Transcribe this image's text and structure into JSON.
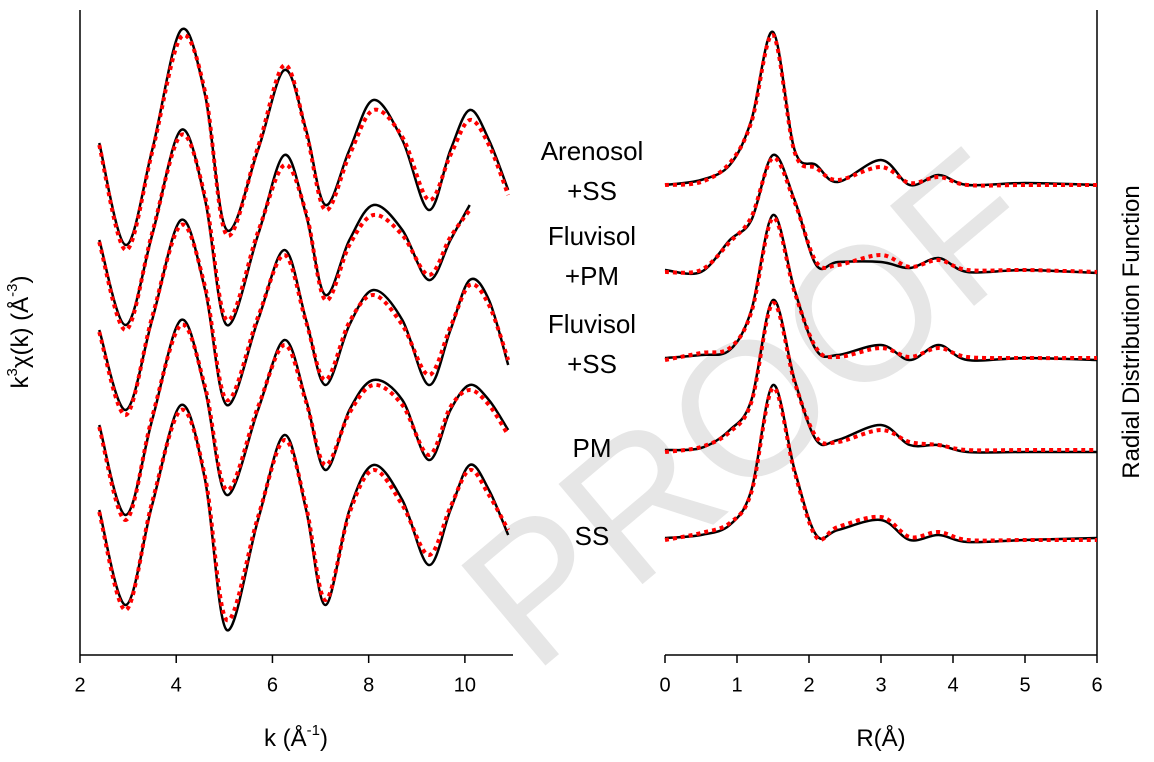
{
  "chart_data": [
    {
      "type": "line",
      "xlabel": [
        "k (Å",
        "-1",
        ")"
      ],
      "ylabel": [
        "k",
        "3",
        "χ(k) (Å",
        "-3",
        ")"
      ],
      "xlim": [
        2,
        11
      ],
      "xticks": [
        2,
        4,
        6,
        8,
        10
      ],
      "ylim": [
        0,
        64.5
      ],
      "x": [
        2.4,
        2.95,
        3.5,
        4.1,
        4.6,
        5.05,
        5.7,
        6.25,
        6.7,
        7.1,
        7.6,
        8.1,
        8.7,
        9.25,
        9.7,
        10.1,
        10.5,
        10.9
      ],
      "series": [
        {
          "color": "#000000",
          "style": "solid",
          "values": [
            51.2,
            41.0,
            50.5,
            62.5,
            56.0,
            42.5,
            50.5,
            58.5,
            52.5,
            45.0,
            50.5,
            55.5,
            51.5,
            44.5,
            50.5,
            54.5,
            51.5,
            46.5
          ]
        },
        {
          "color": "#ff0000",
          "style": "dotted",
          "values": [
            51.0,
            40.5,
            50.3,
            61.8,
            56.3,
            42.0,
            50.8,
            59.0,
            52.3,
            44.5,
            50.0,
            54.5,
            51.8,
            45.5,
            50.0,
            53.5,
            51.0,
            46.0
          ]
        },
        {
          "color": "#000000",
          "style": "solid",
          "values": [
            41.5,
            33.0,
            42.0,
            52.5,
            45.5,
            33.0,
            42.0,
            50.0,
            44.0,
            36.0,
            41.5,
            45.0,
            42.5,
            37.5,
            41.5,
            45.0,
            null,
            null
          ]
        },
        {
          "color": "#ff0000",
          "style": "dotted",
          "values": [
            41.3,
            32.5,
            42.2,
            52.0,
            45.8,
            33.5,
            42.3,
            49.0,
            44.2,
            35.5,
            41.0,
            44.0,
            42.0,
            38.0,
            41.8,
            44.5,
            null,
            null
          ]
        },
        {
          "color": "#000000",
          "style": "solid",
          "values": [
            32.5,
            24.5,
            33.5,
            43.5,
            36.5,
            25.0,
            33.5,
            40.5,
            33.5,
            27.0,
            33.0,
            36.5,
            33.5,
            27.0,
            32.5,
            37.5,
            35.5,
            29.0
          ]
        },
        {
          "color": "#ff0000",
          "style": "dotted",
          "values": [
            32.3,
            24.0,
            33.8,
            43.0,
            36.8,
            25.5,
            33.8,
            40.0,
            33.3,
            27.5,
            33.3,
            36.0,
            33.0,
            28.0,
            32.8,
            37.0,
            35.0,
            29.5
          ]
        },
        {
          "color": "#000000",
          "style": "solid",
          "values": [
            23.0,
            14.0,
            23.5,
            33.5,
            26.5,
            16.0,
            24.5,
            31.5,
            25.5,
            18.5,
            24.5,
            27.5,
            25.5,
            19.5,
            24.5,
            27.0,
            25.5,
            22.5
          ]
        },
        {
          "color": "#ff0000",
          "style": "dotted",
          "values": [
            22.8,
            13.5,
            23.8,
            33.0,
            26.8,
            16.5,
            24.8,
            31.0,
            25.3,
            19.0,
            24.2,
            27.0,
            25.0,
            20.0,
            24.8,
            26.5,
            25.0,
            22.0
          ]
        },
        {
          "color": "#000000",
          "style": "solid",
          "values": [
            14.5,
            5.0,
            15.0,
            25.0,
            17.5,
            2.5,
            13.5,
            22.0,
            14.5,
            5.0,
            14.5,
            19.0,
            15.5,
            9.0,
            14.5,
            19.0,
            16.5,
            12.0
          ]
        },
        {
          "color": "#ff0000",
          "style": "dotted",
          "values": [
            14.3,
            4.5,
            15.3,
            24.5,
            17.8,
            3.5,
            13.8,
            21.5,
            14.8,
            5.5,
            14.2,
            18.5,
            15.0,
            10.0,
            14.8,
            18.5,
            16.0,
            12.5
          ]
        }
      ]
    },
    {
      "type": "line",
      "xlabel": [
        "R(Å)"
      ],
      "ylabel": [
        "Radial Distribution Function"
      ],
      "xlim": [
        0,
        6
      ],
      "xticks": [
        0,
        1,
        2,
        3,
        4,
        5,
        6
      ],
      "ylim": [
        0,
        64.5
      ],
      "x": [
        0,
        0.5,
        0.9,
        1.2,
        1.5,
        1.8,
        2.1,
        2.4,
        3.0,
        3.4,
        3.8,
        4.2,
        5,
        6
      ],
      "curve_labels": [
        [
          "Arenosol",
          "+SS"
        ],
        [
          "Fluvisol",
          "+PM"
        ],
        [
          "Fluvisol",
          "+SS"
        ],
        [
          "PM"
        ],
        [
          "SS"
        ]
      ],
      "series": [
        {
          "color": "#000000",
          "style": "solid",
          "values": [
            47.0,
            47.5,
            49.0,
            53.5,
            62.3,
            50.5,
            49.0,
            47.3,
            49.5,
            47.0,
            48.0,
            47.0,
            47.2,
            47.0
          ]
        },
        {
          "color": "#ff0000",
          "style": "dotted",
          "values": [
            47.0,
            47.3,
            49.2,
            53.3,
            62.0,
            50.3,
            48.7,
            47.5,
            48.8,
            47.2,
            47.8,
            47.0,
            47.0,
            47.0
          ]
        },
        {
          "color": "#000000",
          "style": "solid",
          "values": [
            38.5,
            38.3,
            41.5,
            43.5,
            50.0,
            45.5,
            39.0,
            39.3,
            39.3,
            38.7,
            39.7,
            38.3,
            38.5,
            38.2
          ]
        },
        {
          "color": "#ff0000",
          "style": "dotted",
          "values": [
            38.3,
            38.5,
            41.3,
            43.8,
            49.7,
            45.3,
            39.3,
            39.0,
            40.0,
            38.8,
            39.5,
            38.5,
            38.5,
            38.3
          ]
        },
        {
          "color": "#000000",
          "style": "solid",
          "values": [
            29.7,
            30.0,
            30.5,
            34.5,
            44.0,
            36.5,
            30.5,
            30.0,
            31.0,
            29.5,
            31.0,
            29.5,
            29.7,
            29.5
          ]
        },
        {
          "color": "#ff0000",
          "style": "dotted",
          "values": [
            29.5,
            30.2,
            30.7,
            34.3,
            43.7,
            36.3,
            30.7,
            29.8,
            30.7,
            29.8,
            30.7,
            29.8,
            29.7,
            29.7
          ]
        },
        {
          "color": "#000000",
          "style": "solid",
          "values": [
            20.5,
            20.7,
            22.5,
            25.5,
            35.5,
            27.5,
            21.5,
            21.5,
            23.0,
            21.0,
            21.0,
            20.3,
            20.3,
            20.3
          ]
        },
        {
          "color": "#ff0000",
          "style": "dotted",
          "values": [
            20.3,
            20.8,
            22.3,
            25.3,
            35.2,
            27.3,
            21.8,
            21.3,
            22.5,
            21.3,
            21.0,
            20.5,
            20.5,
            20.5
          ]
        },
        {
          "color": "#000000",
          "style": "solid",
          "values": [
            11.7,
            12.0,
            13.0,
            16.5,
            27.0,
            18.5,
            12.0,
            12.5,
            13.5,
            11.5,
            12.0,
            11.3,
            11.5,
            11.7
          ]
        },
        {
          "color": "#ff0000",
          "style": "dotted",
          "values": [
            11.5,
            12.2,
            13.2,
            16.3,
            26.7,
            18.3,
            11.8,
            12.8,
            13.8,
            11.8,
            12.3,
            11.5,
            11.5,
            11.5
          ]
        }
      ]
    }
  ],
  "watermark": "PROOF"
}
